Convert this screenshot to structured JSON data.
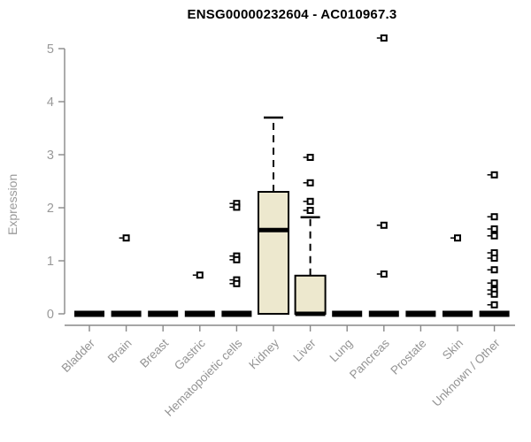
{
  "chart_data": {
    "type": "boxplot",
    "title": "ENSG00000232604 - AC010967.3",
    "ylabel": "Expression",
    "ylim": [
      0,
      5
    ],
    "yticks": [
      0,
      1,
      2,
      3,
      4,
      5
    ],
    "grid": false,
    "legend": "none",
    "box_fill_color": "#ede8ce",
    "line_color": "#000000",
    "axis_color": "#898989",
    "tick_label_color": "#999999",
    "categories": [
      "Bladder",
      "Brain",
      "Breast",
      "Gastric",
      "Hematopoietic cells",
      "Kidney",
      "Liver",
      "Lung",
      "Pancreas",
      "Prostate",
      "Skin",
      "Unknown / Other"
    ],
    "boxes": [
      {
        "category": "Bladder",
        "q1": 0,
        "median": 0,
        "q3": 0,
        "whisker_low": 0,
        "whisker_high": 0,
        "outliers": []
      },
      {
        "category": "Brain",
        "q1": 0,
        "median": 0,
        "q3": 0,
        "whisker_low": 0,
        "whisker_high": 0,
        "outliers": [
          1.43
        ]
      },
      {
        "category": "Breast",
        "q1": 0,
        "median": 0,
        "q3": 0,
        "whisker_low": 0,
        "whisker_high": 0,
        "outliers": []
      },
      {
        "category": "Gastric",
        "q1": 0,
        "median": 0,
        "q3": 0,
        "whisker_low": 0,
        "whisker_high": 0,
        "outliers": [
          0.73
        ]
      },
      {
        "category": "Hematopoietic cells",
        "q1": 0,
        "median": 0,
        "q3": 0,
        "whisker_low": 0,
        "whisker_high": 0,
        "outliers": [
          2.08,
          2.01,
          1.09,
          1.02,
          0.64,
          0.57
        ]
      },
      {
        "category": "Kidney",
        "q1": 0,
        "median": 1.58,
        "q3": 2.3,
        "whisker_low": 0,
        "whisker_high": 3.7,
        "outliers": []
      },
      {
        "category": "Liver",
        "q1": 0,
        "median": 0,
        "q3": 0.72,
        "whisker_low": 0,
        "whisker_high": 1.82,
        "outliers": [
          2.95,
          2.47,
          2.12,
          1.95
        ]
      },
      {
        "category": "Lung",
        "q1": 0,
        "median": 0,
        "q3": 0,
        "whisker_low": 0,
        "whisker_high": 0,
        "outliers": []
      },
      {
        "category": "Pancreas",
        "q1": 0,
        "median": 0,
        "q3": 0,
        "whisker_low": 0,
        "whisker_high": 0,
        "outliers": [
          5.2,
          1.67,
          0.75
        ]
      },
      {
        "category": "Prostate",
        "q1": 0,
        "median": 0,
        "q3": 0,
        "whisker_low": 0,
        "whisker_high": 0,
        "outliers": []
      },
      {
        "category": "Skin",
        "q1": 0,
        "median": 0,
        "q3": 0,
        "whisker_low": 0,
        "whisker_high": 0,
        "outliers": [
          1.43
        ]
      },
      {
        "category": "Unknown / Other",
        "q1": 0,
        "median": 0,
        "q3": 0,
        "whisker_low": 0,
        "whisker_high": 0,
        "outliers": [
          2.62,
          1.83,
          1.6,
          1.47,
          1.15,
          1.05,
          0.83,
          0.58,
          0.45,
          0.37,
          0.17
        ]
      }
    ]
  }
}
